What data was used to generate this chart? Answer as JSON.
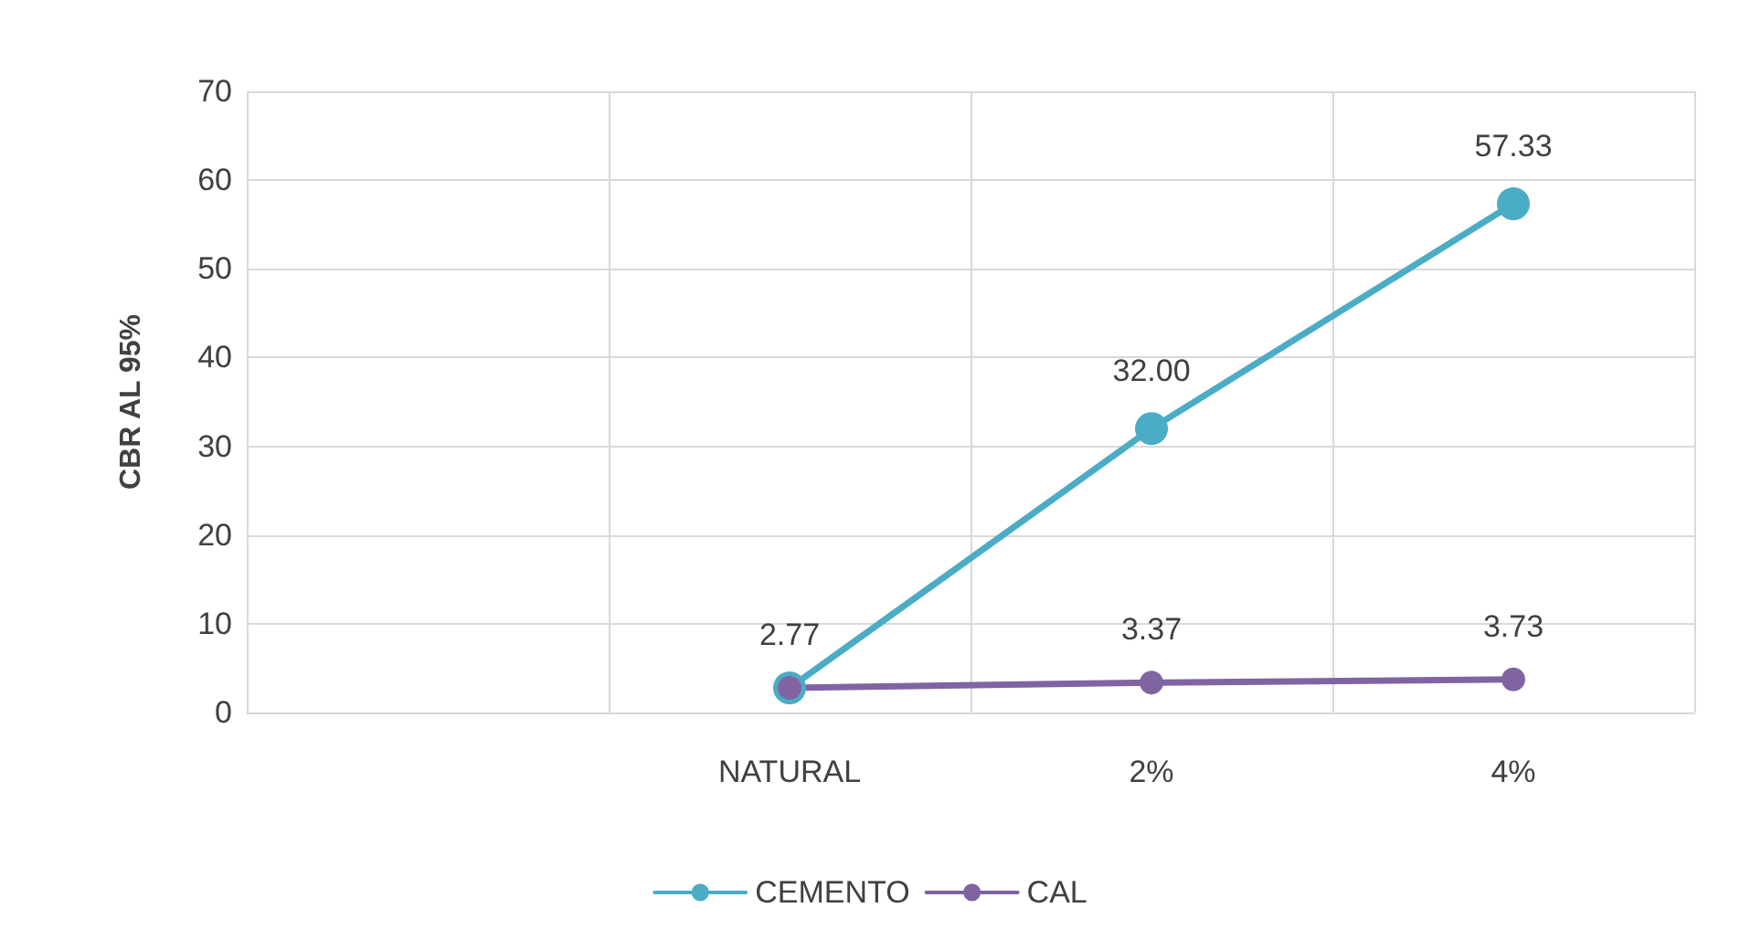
{
  "chart_data": {
    "type": "line",
    "ylabel": "CBR AL 95%",
    "categories": [
      null,
      "NATURAL",
      "2%",
      "4%"
    ],
    "series": [
      {
        "name": "CEMENTO",
        "color": "#4bacc6",
        "values": [
          null,
          2.77,
          32.0,
          57.33
        ],
        "value_labels": [
          null,
          null,
          "32.00",
          "57.33"
        ]
      },
      {
        "name": "CAL",
        "color": "#8064a2",
        "values": [
          null,
          2.77,
          3.37,
          3.73
        ],
        "value_labels": [
          null,
          "2.77",
          "3.37",
          "3.73"
        ]
      }
    ],
    "ylim": [
      0,
      70
    ],
    "yticks": [
      0,
      10,
      20,
      30,
      40,
      50,
      60,
      70
    ],
    "grid": true,
    "legend": "bottom",
    "marker": "circle",
    "line_style": "solid"
  }
}
